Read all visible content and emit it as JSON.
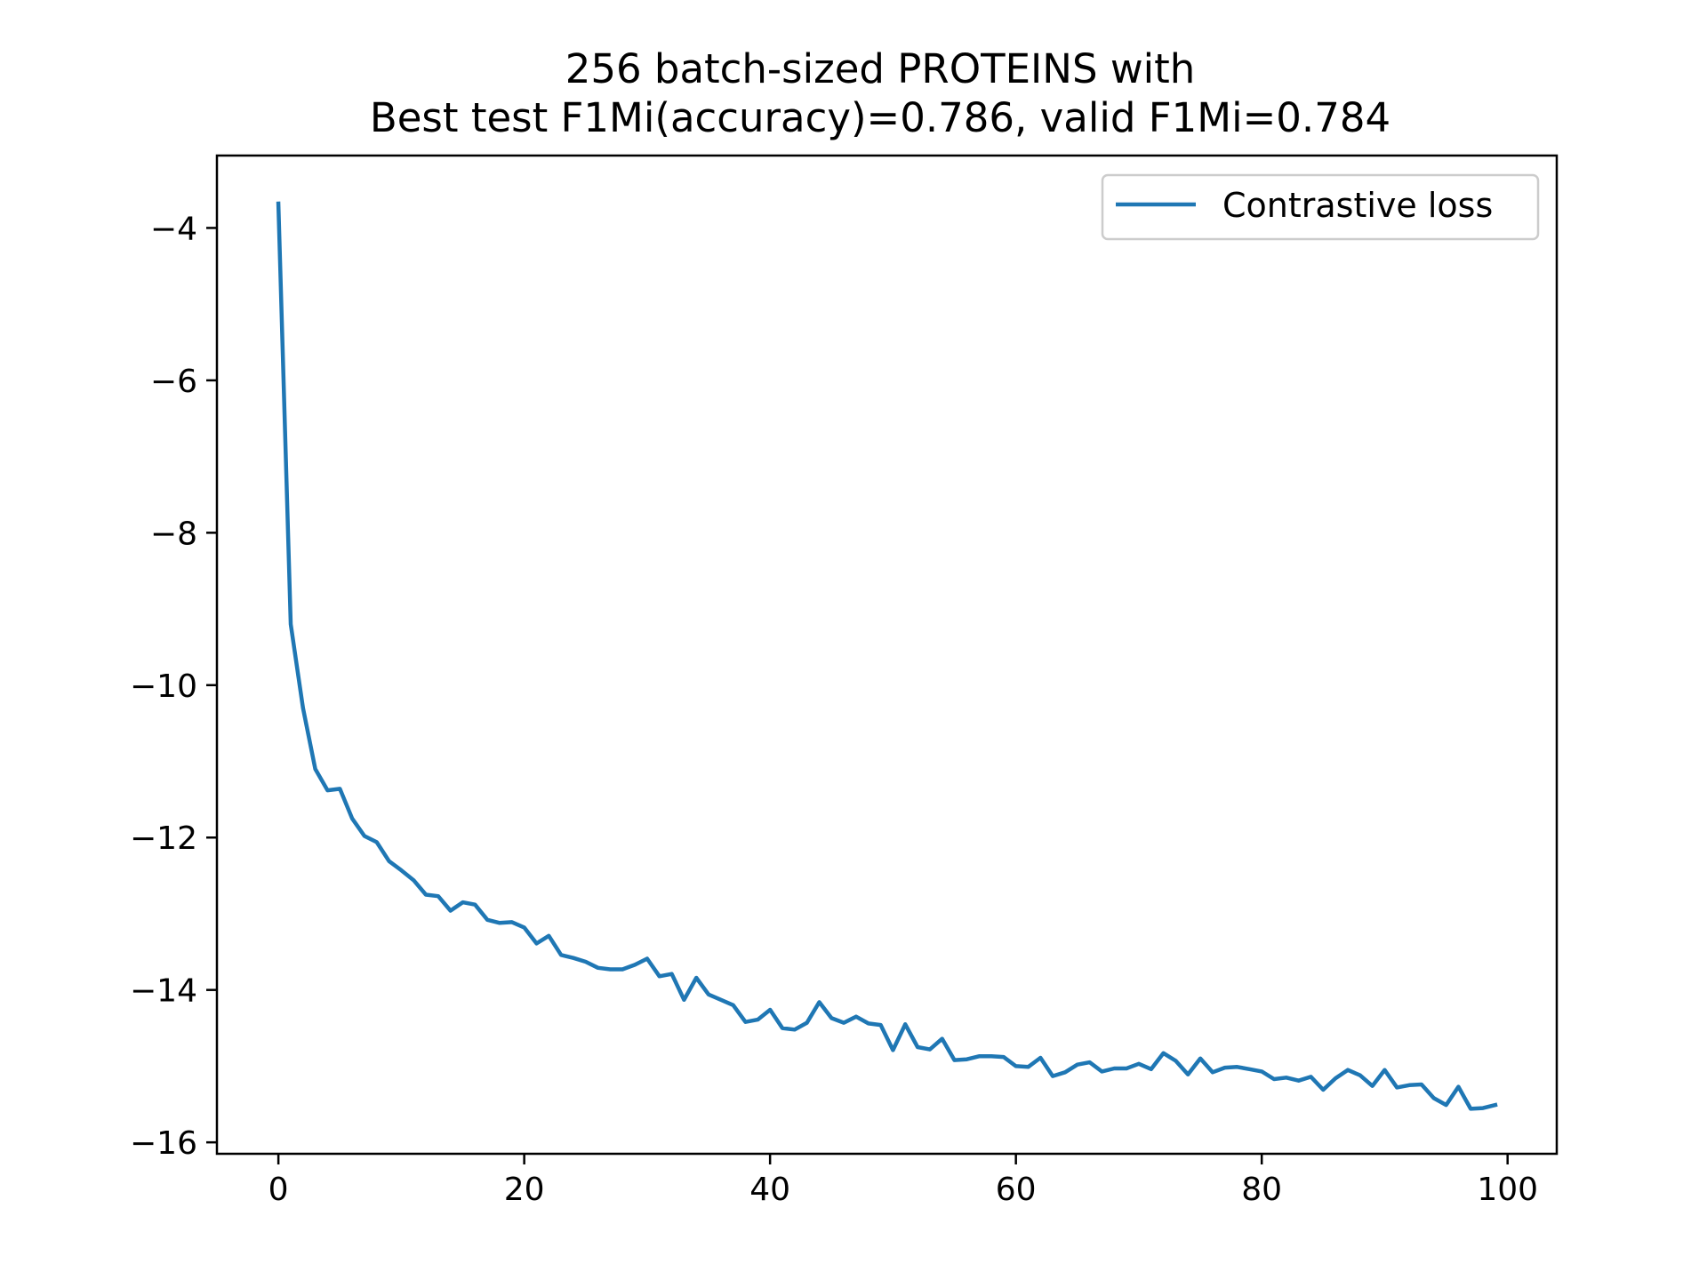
{
  "chart_data": {
    "type": "line",
    "title_lines": [
      "256 batch-sized PROTEINS with",
      "Best test F1Mi(accuracy)=0.786, valid F1Mi=0.784"
    ],
    "xlabel": "",
    "ylabel": "",
    "xlim": [
      -5,
      104
    ],
    "ylim": [
      -16.15,
      -3.05
    ],
    "xticks": [
      0,
      20,
      40,
      60,
      80,
      100
    ],
    "yticks": [
      -4,
      -6,
      -8,
      -10,
      -12,
      -14,
      -16
    ],
    "xtick_labels": [
      "0",
      "20",
      "40",
      "60",
      "80",
      "100"
    ],
    "ytick_labels": [
      "−4",
      "−6",
      "−8",
      "−10",
      "−12",
      "−14",
      "−16"
    ],
    "grid": false,
    "legend_position": "top-right",
    "series": [
      {
        "name": "Contrastive loss",
        "color": "#1f77b4",
        "x": [
          0,
          1,
          2,
          3,
          4,
          5,
          6,
          7,
          8,
          9,
          10,
          11,
          12,
          13,
          14,
          15,
          16,
          17,
          18,
          19,
          20,
          21,
          22,
          23,
          24,
          25,
          26,
          27,
          28,
          29,
          30,
          31,
          32,
          33,
          34,
          35,
          36,
          37,
          38,
          39,
          40,
          41,
          42,
          43,
          44,
          45,
          46,
          47,
          48,
          49,
          50,
          51,
          52,
          53,
          54,
          55,
          56,
          57,
          58,
          59,
          60,
          61,
          62,
          63,
          64,
          65,
          66,
          67,
          68,
          69,
          70,
          71,
          72,
          73,
          74,
          75,
          76,
          77,
          78,
          79,
          80,
          81,
          82,
          83,
          84,
          85,
          86,
          87,
          88,
          89,
          90,
          91,
          92,
          93,
          94,
          95,
          96,
          97,
          98,
          99
        ],
        "y": [
          -3.68,
          -9.2,
          -10.3,
          -11.1,
          -11.38,
          -11.36,
          -11.75,
          -11.98,
          -12.06,
          -12.31,
          -12.43,
          -12.56,
          -12.75,
          -12.77,
          -12.96,
          -12.85,
          -12.88,
          -13.08,
          -13.12,
          -13.11,
          -13.18,
          -13.39,
          -13.29,
          -13.54,
          -13.58,
          -13.63,
          -13.71,
          -13.73,
          -13.73,
          -13.67,
          -13.59,
          -13.82,
          -13.79,
          -14.13,
          -13.84,
          -14.06,
          -14.13,
          -14.2,
          -14.42,
          -14.39,
          -14.26,
          -14.5,
          -14.52,
          -14.43,
          -14.16,
          -14.37,
          -14.43,
          -14.35,
          -14.44,
          -14.46,
          -14.79,
          -14.45,
          -14.75,
          -14.78,
          -14.64,
          -14.92,
          -14.91,
          -14.87,
          -14.87,
          -14.88,
          -15.0,
          -15.01,
          -14.89,
          -15.13,
          -15.08,
          -14.98,
          -14.95,
          -15.07,
          -15.03,
          -15.03,
          -14.97,
          -15.04,
          -14.83,
          -14.93,
          -15.11,
          -14.9,
          -15.08,
          -15.02,
          -15.01,
          -15.04,
          -15.07,
          -15.17,
          -15.15,
          -15.19,
          -15.14,
          -15.31,
          -15.16,
          -15.05,
          -15.12,
          -15.26,
          -15.05,
          -15.28,
          -15.25,
          -15.24,
          -15.42,
          -15.51,
          -15.27,
          -15.56,
          -15.55,
          -15.51
        ]
      }
    ]
  }
}
